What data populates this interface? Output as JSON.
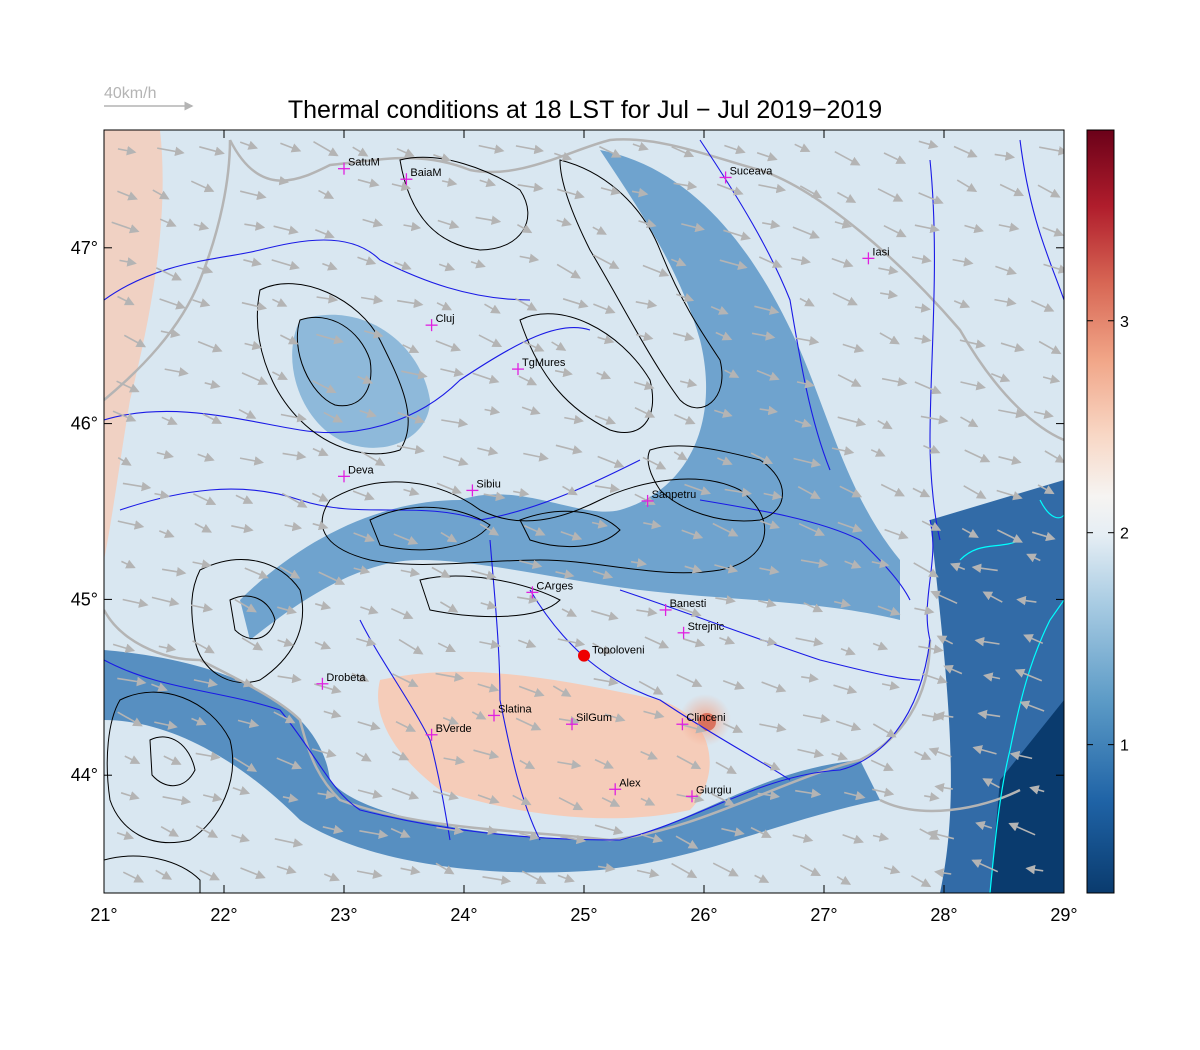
{
  "title": "Thermal conditions at 18 LST for Jul − Jul  2019−2019",
  "wind_scale_label": "40km/h",
  "map": {
    "lon_range": [
      21,
      29
    ],
    "lat_range": [
      43.33,
      47.67
    ],
    "lon_ticks": [
      {
        "value": 21,
        "label": "21°"
      },
      {
        "value": 22,
        "label": "22°"
      },
      {
        "value": 23,
        "label": "23°"
      },
      {
        "value": 24,
        "label": "24°"
      },
      {
        "value": 25,
        "label": "25°"
      },
      {
        "value": 26,
        "label": "26°"
      },
      {
        "value": 27,
        "label": "27°"
      },
      {
        "value": 28,
        "label": "28°"
      },
      {
        "value": 29,
        "label": "29°"
      }
    ],
    "lat_ticks": [
      {
        "value": 44,
        "label": "44°"
      },
      {
        "value": 45,
        "label": "45°"
      },
      {
        "value": 46,
        "label": "46°"
      },
      {
        "value": 47,
        "label": "47°"
      }
    ],
    "colors": {
      "low": "#0a3b6e",
      "mid": "#f6f4f2",
      "high": "#6b0119",
      "city_marker": "#e020e0",
      "highlight_marker": "#ee0000",
      "river": "#1a1ae6",
      "border": "#b4b4b4",
      "contour": "#000000",
      "wind_arrow": "#b4b4b4",
      "coast": "#00ffff"
    }
  },
  "cities": [
    {
      "name": "SatuM",
      "lon": 23.0,
      "lat": 47.45
    },
    {
      "name": "BaiaM",
      "lon": 23.52,
      "lat": 47.39
    },
    {
      "name": "Suceava",
      "lon": 26.18,
      "lat": 47.4
    },
    {
      "name": "Iasi",
      "lon": 27.37,
      "lat": 46.94
    },
    {
      "name": "Cluj",
      "lon": 23.73,
      "lat": 46.56
    },
    {
      "name": "TgMures",
      "lon": 24.45,
      "lat": 46.31
    },
    {
      "name": "Deva",
      "lon": 23.0,
      "lat": 45.7
    },
    {
      "name": "Sibiu",
      "lon": 24.07,
      "lat": 45.62
    },
    {
      "name": "Sanpetru",
      "lon": 25.53,
      "lat": 45.56
    },
    {
      "name": "CArges",
      "lon": 24.57,
      "lat": 45.04
    },
    {
      "name": "Banesti",
      "lon": 25.68,
      "lat": 44.94
    },
    {
      "name": "Strejnic",
      "lon": 25.83,
      "lat": 44.81
    },
    {
      "name": "Drobeta",
      "lon": 22.82,
      "lat": 44.52
    },
    {
      "name": "Slatina",
      "lon": 24.25,
      "lat": 44.34
    },
    {
      "name": "SilGum",
      "lon": 24.9,
      "lat": 44.29
    },
    {
      "name": "Clinceni",
      "lon": 25.82,
      "lat": 44.29
    },
    {
      "name": "BVerde",
      "lon": 23.73,
      "lat": 44.23
    },
    {
      "name": "Alex",
      "lon": 25.26,
      "lat": 43.92
    },
    {
      "name": "Giurgiu",
      "lon": 25.9,
      "lat": 43.88
    }
  ],
  "highlight_site": {
    "name": "Topoloveni",
    "lon": 25.0,
    "lat": 44.68
  },
  "colorbar": {
    "range": [
      0.3,
      3.9
    ],
    "ticks": [
      {
        "value": 1,
        "label": "1"
      },
      {
        "value": 2,
        "label": "2"
      },
      {
        "value": 3,
        "label": "3"
      }
    ]
  }
}
